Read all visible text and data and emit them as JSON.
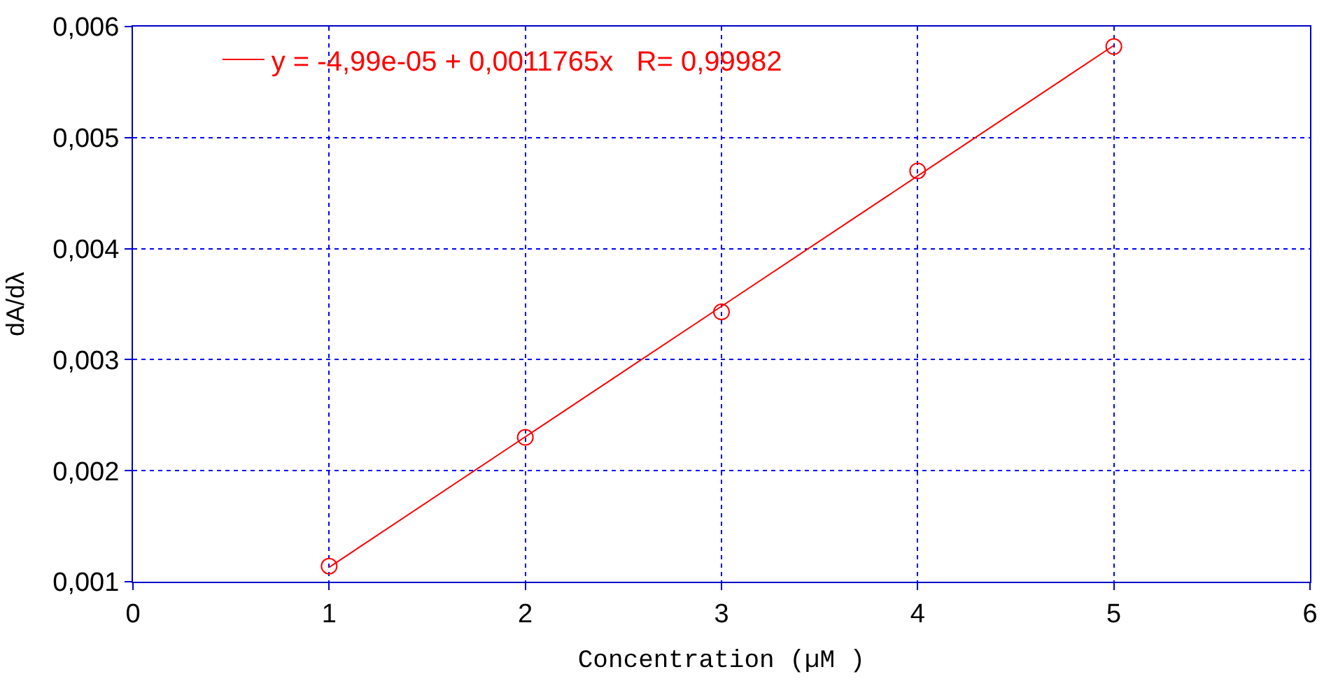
{
  "chart_data": {
    "type": "scatter",
    "xlabel": "Concentration (µM )",
    "ylabel": "dA/dλ",
    "x": [
      1,
      2,
      3,
      4,
      5
    ],
    "series": [
      {
        "color": "#ff0000",
        "marker": "circle",
        "values": [
          0.00114,
          0.0023,
          0.00343,
          0.0047,
          0.00582
        ]
      },
      {
        "type": "line",
        "name": "y = -4,99e-05 + 0,0011765x   R= 0,99982",
        "color": "#ff0000",
        "x": [
          1,
          5
        ],
        "values": [
          0.00113,
          0.00583
        ],
        "marker": "none"
      }
    ],
    "xlim": [
      0,
      6
    ],
    "xticks": [
      0,
      1,
      2,
      3,
      4,
      5,
      6
    ],
    "ylim": [
      0.001,
      0.006
    ],
    "yticks": [
      {
        "value": 0.001,
        "label": "0,001"
      },
      {
        "value": 0.002,
        "label": "0,002"
      },
      {
        "value": 0.003,
        "label": "0,003"
      },
      {
        "value": 0.004,
        "label": "0,004"
      },
      {
        "value": 0.005,
        "label": "0,005"
      },
      {
        "value": 0.006,
        "label": "0,006"
      }
    ],
    "grid": true,
    "legend": "top left"
  }
}
